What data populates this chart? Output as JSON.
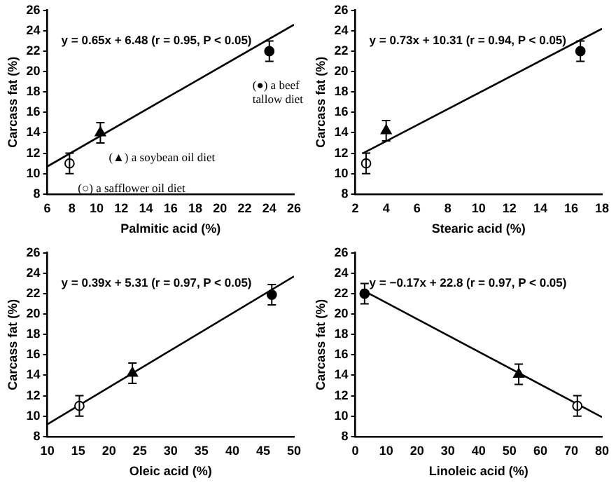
{
  "chart_data": [
    {
      "type": "scatter",
      "xlabel": "Palmitic acid (%)",
      "ylabel": "Carcass fat (%)",
      "xlim": [
        6,
        26
      ],
      "xticks": [
        6,
        8,
        10,
        12,
        14,
        16,
        18,
        20,
        22,
        24,
        26
      ],
      "ylim": [
        8,
        26
      ],
      "yticks": [
        8,
        10,
        12,
        14,
        16,
        18,
        20,
        22,
        24,
        26
      ],
      "grid": false,
      "legend": false,
      "annotations": [
        "y = 0.65x + 6.48 (r = 0.95, P < 0.05)",
        {
          "text": "(●) a beef tallow diet",
          "x": 24,
          "y": 22
        },
        {
          "text": "(▲) a soybean oil diet",
          "x": 10.3,
          "y": 14
        },
        {
          "text": "(○) a safflower oil diet",
          "x": 7.8,
          "y": 11
        }
      ],
      "series": [
        {
          "type": "scatter",
          "marker": "circle",
          "color": "#ffffff",
          "x": [
            7.8
          ],
          "values": [
            11
          ],
          "errors": [
            1
          ]
        },
        {
          "type": "scatter",
          "marker": "triangle",
          "color": "#000000",
          "x": [
            10.3
          ],
          "values": [
            14
          ],
          "errors": [
            1
          ]
        },
        {
          "type": "scatter",
          "marker": "circle",
          "color": "#000000",
          "x": [
            24
          ],
          "values": [
            22
          ],
          "errors": [
            1
          ]
        },
        {
          "type": "line",
          "marker": "none",
          "color": "#000000",
          "x": [
            6,
            26
          ],
          "values": [
            10.7,
            24.6
          ]
        }
      ]
    },
    {
      "type": "scatter",
      "xlabel": "Stearic acid (%)",
      "ylabel": "Carcass fat (%)",
      "xlim": [
        2,
        18
      ],
      "xticks": [
        2,
        4,
        6,
        8,
        10,
        12,
        14,
        16,
        18
      ],
      "ylim": [
        8,
        26
      ],
      "yticks": [
        8,
        10,
        12,
        14,
        16,
        18,
        20,
        22,
        24,
        26
      ],
      "grid": false,
      "legend": false,
      "annotations": [
        "y = 0.73x + 10.31 (r = 0.94, P < 0.05)"
      ],
      "series": [
        {
          "type": "scatter",
          "marker": "circle",
          "color": "#ffffff",
          "x": [
            2.7
          ],
          "values": [
            11
          ],
          "errors": [
            1
          ]
        },
        {
          "type": "scatter",
          "marker": "triangle",
          "color": "#000000",
          "x": [
            4
          ],
          "values": [
            14.2
          ],
          "errors": [
            1
          ]
        },
        {
          "type": "scatter",
          "marker": "circle",
          "color": "#000000",
          "x": [
            16.6
          ],
          "values": [
            22
          ],
          "errors": [
            1
          ]
        },
        {
          "type": "line",
          "marker": "none",
          "color": "#000000",
          "x": [
            2.5,
            18
          ],
          "values": [
            12,
            24.2
          ]
        }
      ]
    },
    {
      "type": "scatter",
      "xlabel": "Oleic acid (%)",
      "ylabel": "Carcass fat (%)",
      "xlim": [
        10,
        50
      ],
      "xticks": [
        10,
        15,
        20,
        25,
        30,
        35,
        40,
        45,
        50
      ],
      "ylim": [
        8,
        26
      ],
      "yticks": [
        8,
        10,
        12,
        14,
        16,
        18,
        20,
        22,
        24,
        26
      ],
      "grid": false,
      "legend": false,
      "annotations": [
        "y = 0.39x + 5.31 (r = 0.97, P < 0.05)"
      ],
      "series": [
        {
          "type": "scatter",
          "marker": "circle",
          "color": "#ffffff",
          "x": [
            15.2
          ],
          "values": [
            11
          ],
          "errors": [
            1
          ]
        },
        {
          "type": "scatter",
          "marker": "triangle",
          "color": "#000000",
          "x": [
            23.8
          ],
          "values": [
            14.2
          ],
          "errors": [
            1
          ]
        },
        {
          "type": "scatter",
          "marker": "circle",
          "color": "#000000",
          "x": [
            46.4
          ],
          "values": [
            21.9
          ],
          "errors": [
            1
          ]
        },
        {
          "type": "line",
          "marker": "none",
          "color": "#000000",
          "x": [
            10,
            50
          ],
          "values": [
            9.2,
            23.7
          ]
        }
      ]
    },
    {
      "type": "scatter",
      "xlabel": "Linoleic acid (%)",
      "ylabel": "Carcass fat (%)",
      "xlim": [
        0,
        80
      ],
      "xticks": [
        0,
        10,
        20,
        30,
        40,
        50,
        60,
        70,
        80
      ],
      "ylim": [
        8,
        26
      ],
      "yticks": [
        8,
        10,
        12,
        14,
        16,
        18,
        20,
        22,
        24,
        26
      ],
      "grid": false,
      "legend": false,
      "annotations": [
        "y = −0.17x + 22.8 (r = 0.97, P < 0.05)"
      ],
      "series": [
        {
          "type": "scatter",
          "marker": "circle",
          "color": "#ffffff",
          "x": [
            72
          ],
          "values": [
            11
          ],
          "errors": [
            1
          ]
        },
        {
          "type": "scatter",
          "marker": "triangle",
          "color": "#000000",
          "x": [
            53
          ],
          "values": [
            14.1
          ],
          "errors": [
            1
          ]
        },
        {
          "type": "scatter",
          "marker": "circle",
          "color": "#000000",
          "x": [
            3
          ],
          "values": [
            22
          ],
          "errors": [
            1
          ]
        },
        {
          "type": "line",
          "marker": "none",
          "color": "#000000",
          "x": [
            2,
            80
          ],
          "values": [
            22.4,
            9.9
          ]
        }
      ]
    }
  ]
}
